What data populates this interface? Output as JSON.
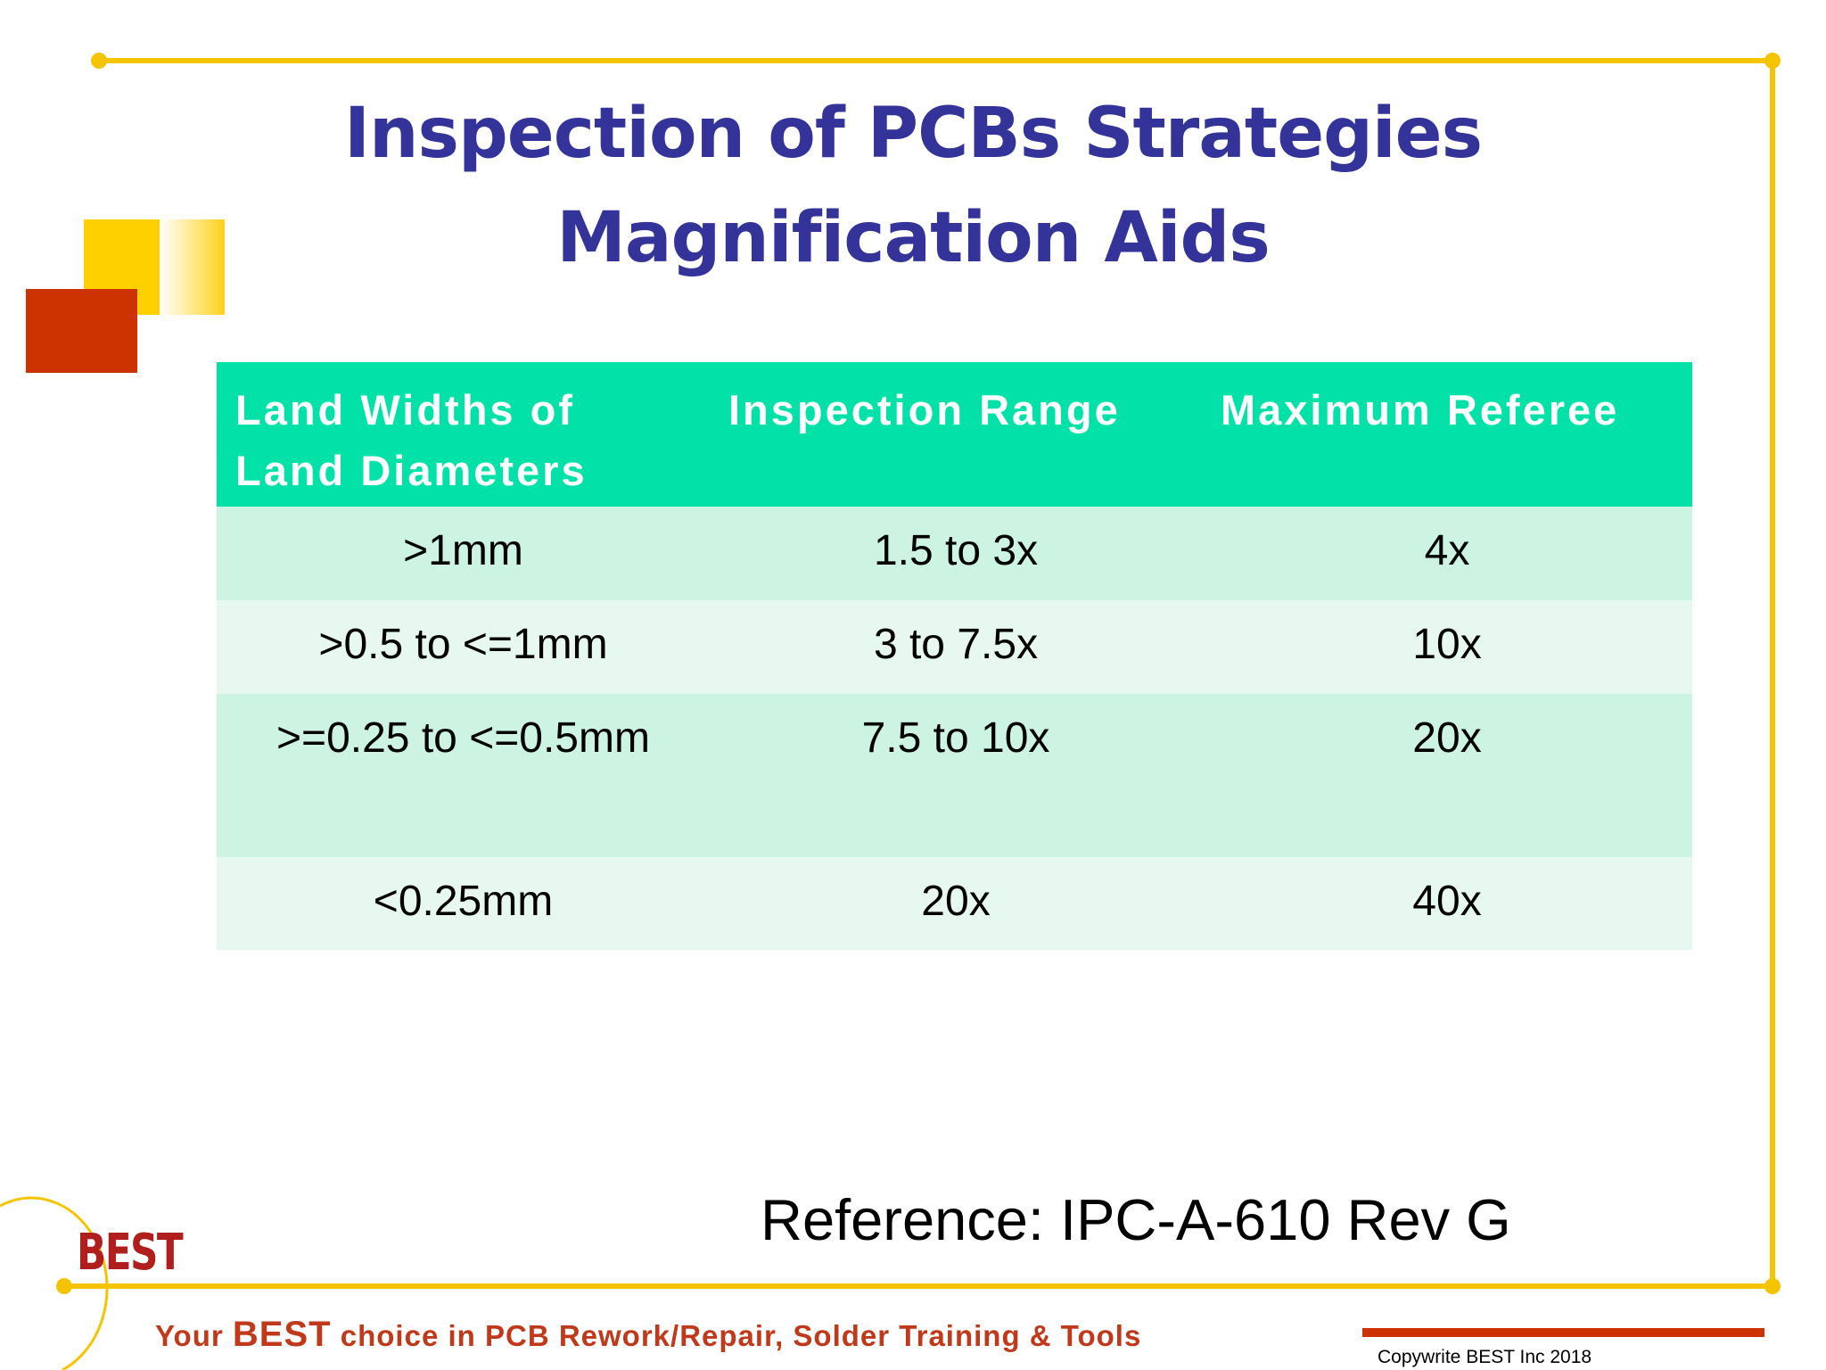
{
  "title": {
    "line1": "Inspection of PCBs Strategies",
    "line2": "Magnification Aids"
  },
  "table": {
    "header": [
      "Land Widths of Land Diameters",
      "Inspection Range",
      "Maximum Referee"
    ],
    "rows": [
      [
        ">1mm",
        "1.5 to 3x",
        "4x"
      ],
      [
        ">0.5 to <=1mm",
        "3 to 7.5x",
        "10x"
      ],
      [
        ">=0.25 to <=0.5mm",
        "7.5 to 10x",
        "20x"
      ],
      [
        "<0.25mm",
        "20x",
        "40x"
      ]
    ]
  },
  "reference": "Reference: IPC-A-610 Rev G",
  "logo": "BEST",
  "footer": {
    "tagline_start": "Your",
    "tagline_brand": "BEST",
    "tagline_end": "choice in PCB Rework/Repair, Solder Training & Tools",
    "copyright": "Copywrite BEST Inc 2018"
  }
}
